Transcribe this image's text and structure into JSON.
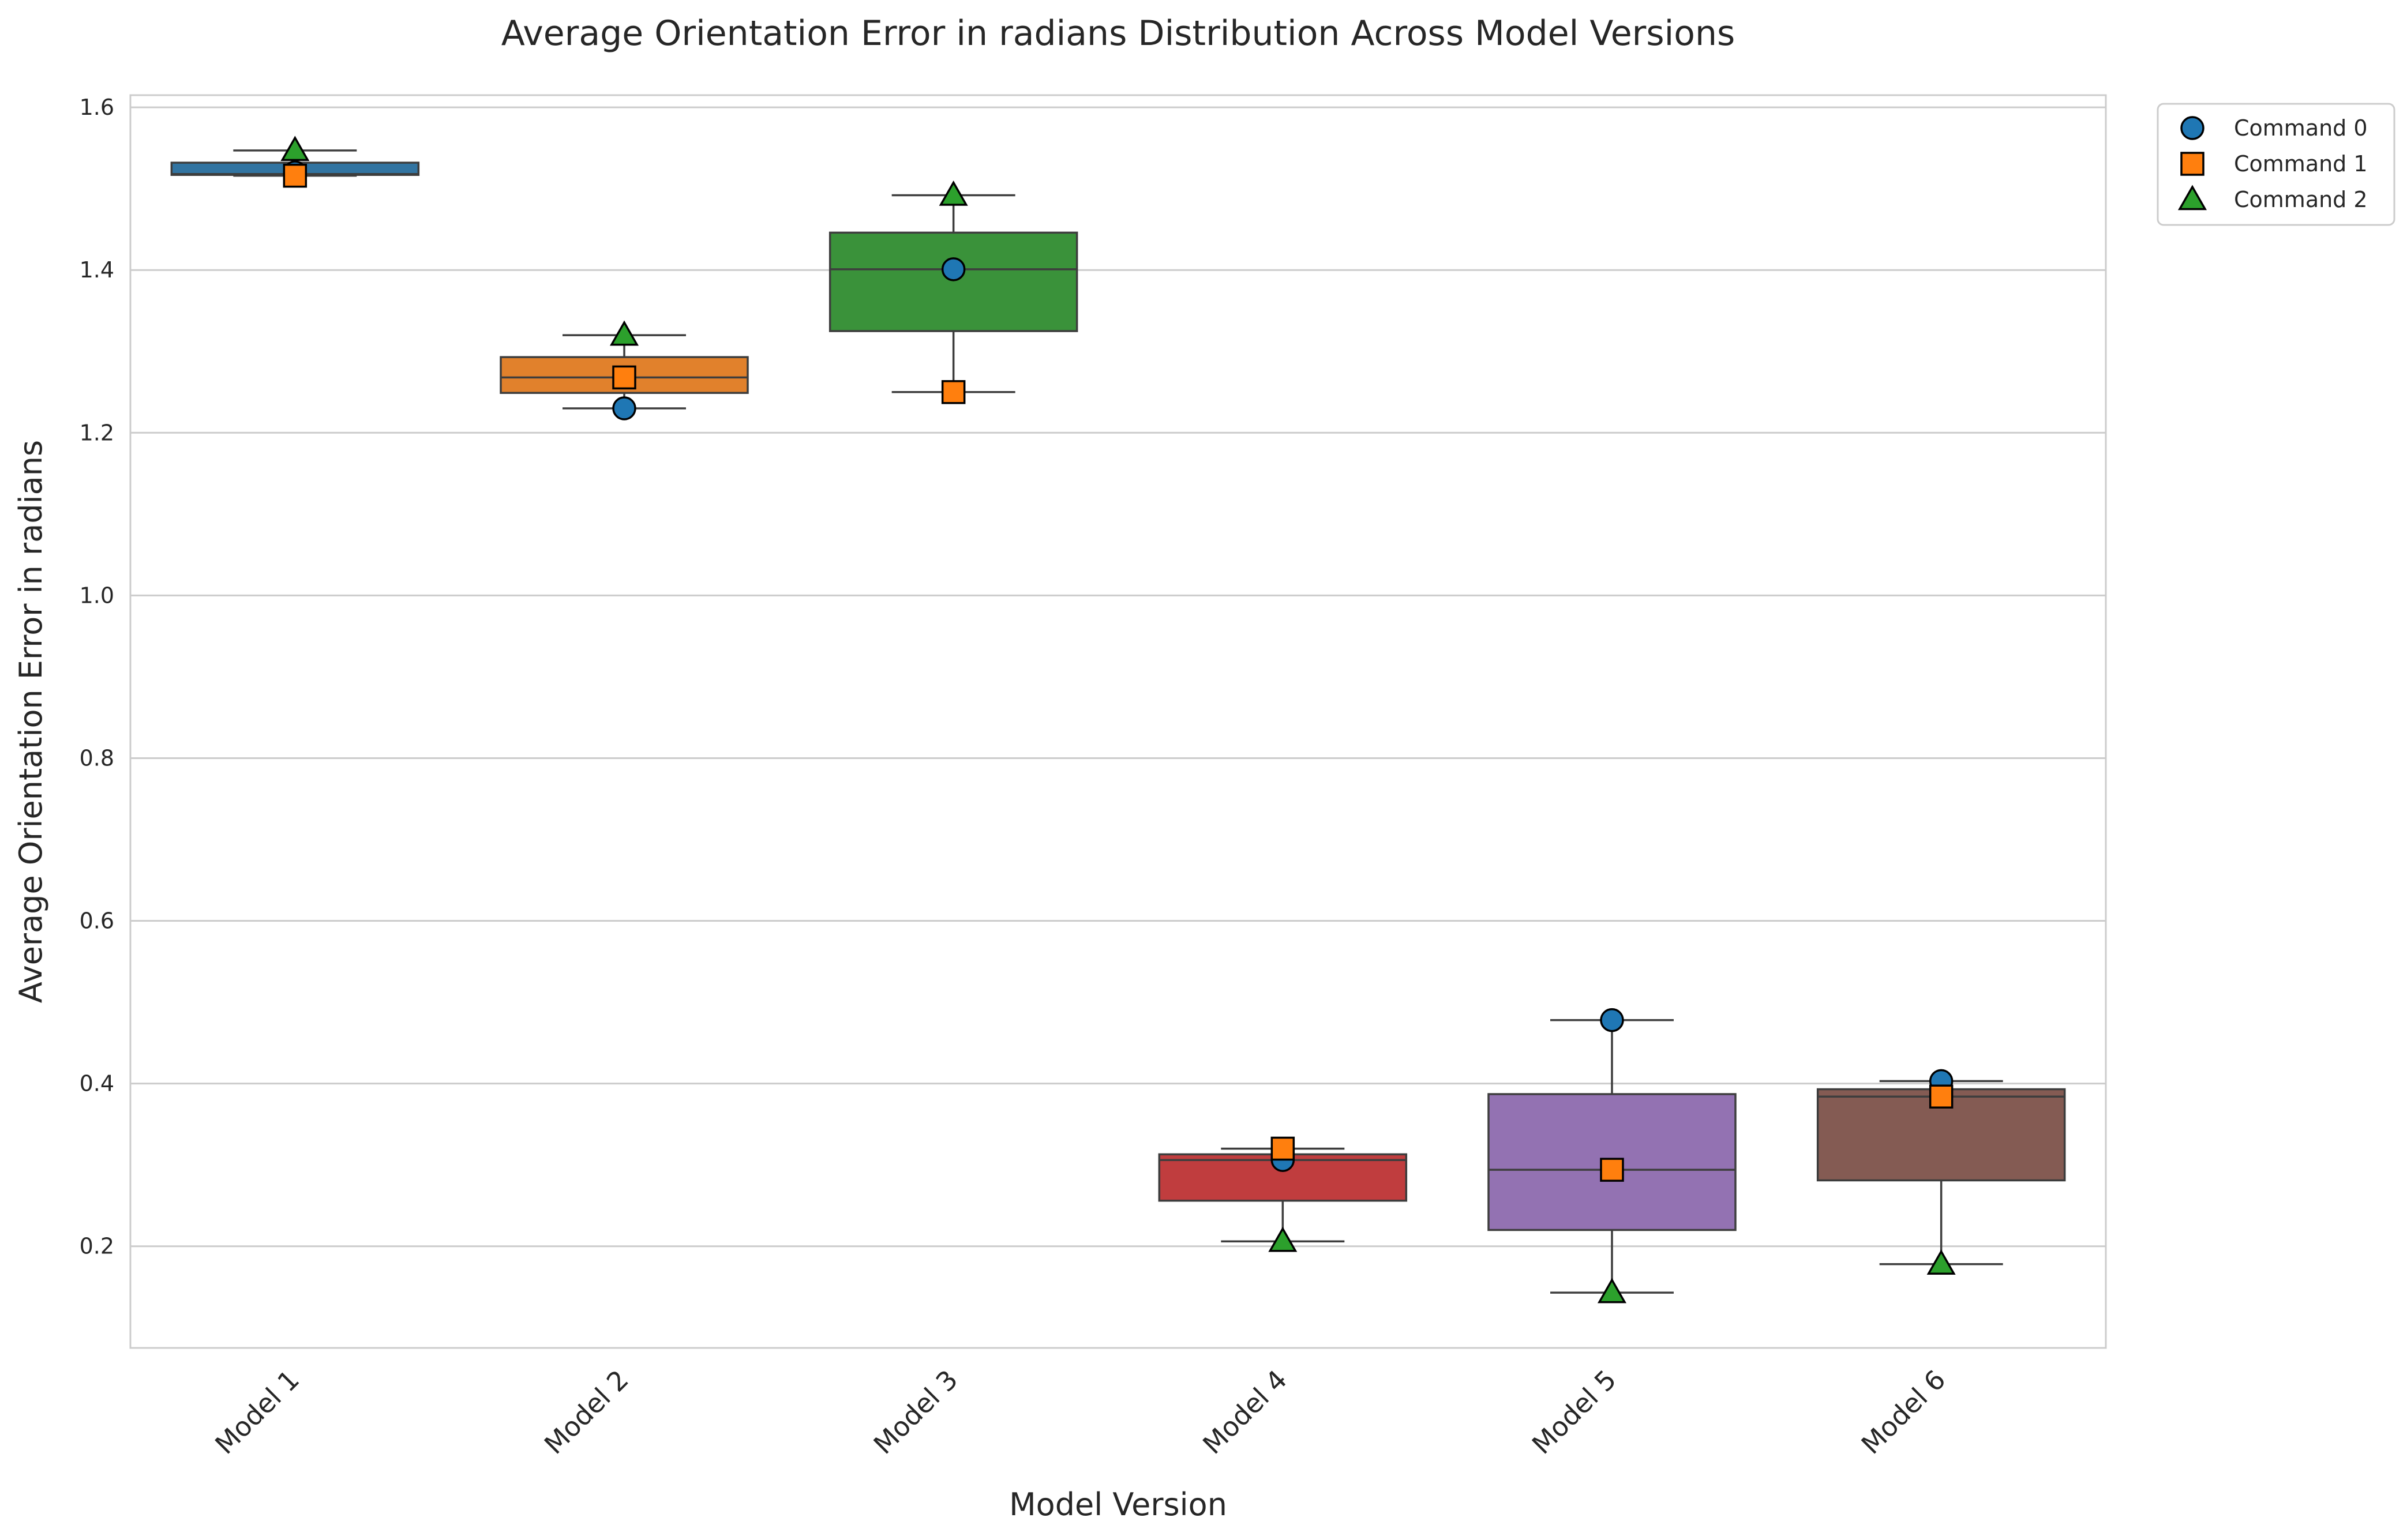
{
  "chart_data": {
    "type": "box",
    "title": "Average Orientation Error in radians Distribution Across Model Versions",
    "xlabel": "Model Version",
    "ylabel": "Average Orientation Error in radians",
    "ylim": [
      0.075,
      1.615
    ],
    "yticks": [
      0.2,
      0.4,
      0.6,
      0.8,
      1.0,
      1.2,
      1.4,
      1.6
    ],
    "grid": "y",
    "legend_position": "outside-top-right",
    "categories": [
      "Model 1",
      "Model 2",
      "Model 3",
      "Model 4",
      "Model 5",
      "Model 6"
    ],
    "box_colors": [
      "#3274a1",
      "#e1812c",
      "#3a923a",
      "#c03d3e",
      "#9372b2",
      "#845b53"
    ],
    "boxes": [
      {
        "q1": 1.517,
        "median": 1.518,
        "q3": 1.532,
        "whisker_low": 1.516,
        "whisker_high": 1.547
      },
      {
        "q1": 1.249,
        "median": 1.268,
        "q3": 1.293,
        "whisker_low": 1.23,
        "whisker_high": 1.32
      },
      {
        "q1": 1.325,
        "median": 1.401,
        "q3": 1.446,
        "whisker_low": 1.25,
        "whisker_high": 1.492
      },
      {
        "q1": 0.256,
        "median": 0.306,
        "q3": 0.313,
        "whisker_low": 0.206,
        "whisker_high": 0.32
      },
      {
        "q1": 0.22,
        "median": 0.294,
        "q3": 0.387,
        "whisker_low": 0.143,
        "whisker_high": 0.478
      },
      {
        "q1": 0.281,
        "median": 0.384,
        "q3": 0.393,
        "whisker_low": 0.178,
        "whisker_high": 0.403
      }
    ],
    "series": [
      {
        "name": "Command 0",
        "marker": "circle",
        "color": "#1f77b4",
        "values": [
          1.52,
          1.23,
          1.401,
          0.306,
          0.478,
          0.403
        ]
      },
      {
        "name": "Command 1",
        "marker": "square",
        "color": "#ff7f0e",
        "values": [
          1.516,
          1.268,
          1.25,
          0.32,
          0.294,
          0.384
        ]
      },
      {
        "name": "Command 2",
        "marker": "triangle",
        "color": "#2ca02c",
        "values": [
          1.547,
          1.32,
          1.492,
          0.206,
          0.143,
          0.178
        ]
      }
    ]
  }
}
